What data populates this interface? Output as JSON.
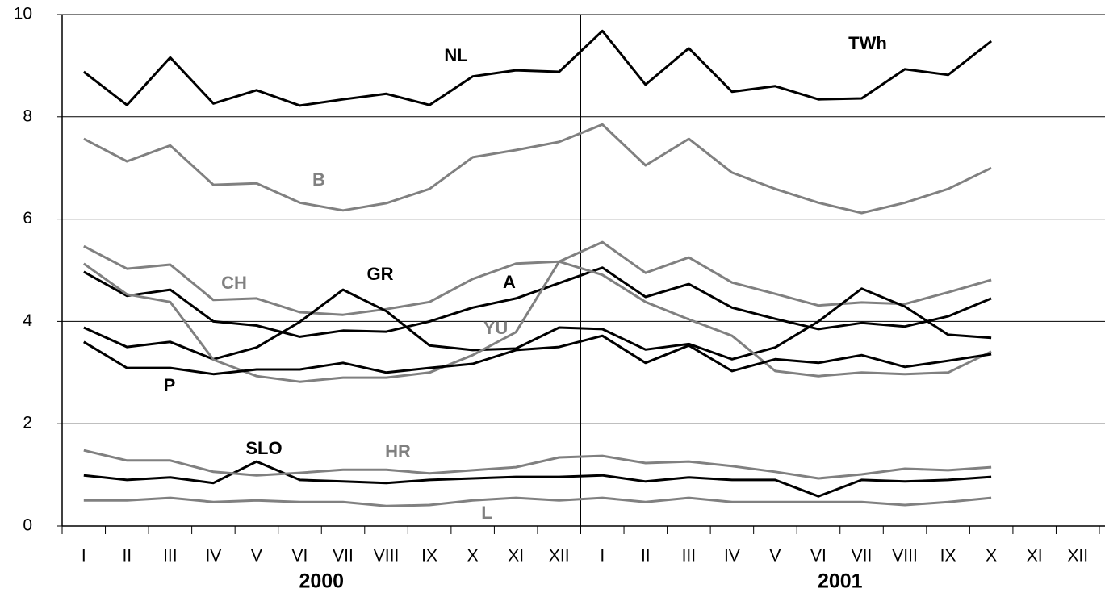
{
  "chart_data": {
    "type": "line",
    "categories": [
      "I",
      "II",
      "III",
      "IV",
      "V",
      "VI",
      "VII",
      "VIII",
      "IX",
      "X",
      "XI",
      "XII",
      "I",
      "II",
      "III",
      "IV",
      "V",
      "VI",
      "VII",
      "VIII",
      "IX",
      "X",
      "XI",
      "XII"
    ],
    "x_group_labels": [
      "2000",
      "2001"
    ],
    "unit_label": "TWh",
    "ylim": [
      0,
      10
    ],
    "yticks": [
      0,
      2,
      4,
      6,
      8,
      10
    ],
    "grid": true,
    "series": [
      {
        "name": "NL",
        "color": "#000000",
        "values": [
          8.88,
          8.23,
          9.16,
          8.26,
          8.52,
          8.22,
          8.34,
          8.45,
          8.23,
          8.79,
          8.91,
          8.88,
          9.68,
          8.63,
          9.34,
          8.49,
          8.6,
          8.34,
          8.36,
          8.93,
          8.82,
          9.48,
          null,
          null
        ]
      },
      {
        "name": "B",
        "color": "#808080",
        "values": [
          7.57,
          7.13,
          7.44,
          6.67,
          6.7,
          6.32,
          6.17,
          6.31,
          6.59,
          7.21,
          7.35,
          7.51,
          7.85,
          7.05,
          7.57,
          6.91,
          6.59,
          6.32,
          6.12,
          6.32,
          6.59,
          7.0,
          null,
          null
        ]
      },
      {
        "name": "CH",
        "color": "#808080",
        "values": [
          5.47,
          5.03,
          5.11,
          4.42,
          4.45,
          4.18,
          4.13,
          4.24,
          4.38,
          4.83,
          5.13,
          5.17,
          5.55,
          4.95,
          5.25,
          4.76,
          4.54,
          4.31,
          4.37,
          4.34,
          4.57,
          4.81,
          null,
          null
        ]
      },
      {
        "name": "GR",
        "color": "#000000",
        "values": [
          3.88,
          3.5,
          3.6,
          3.26,
          3.49,
          3.99,
          4.62,
          4.2,
          3.53,
          3.44,
          3.47,
          3.88,
          3.85,
          3.45,
          3.56,
          3.26,
          3.49,
          4.0,
          4.64,
          4.29,
          3.74,
          3.68,
          null,
          null
        ]
      },
      {
        "name": "A",
        "color": "#000000",
        "values": [
          4.97,
          4.5,
          4.62,
          4.0,
          3.92,
          3.7,
          3.82,
          3.8,
          4.0,
          4.27,
          4.45,
          4.75,
          5.05,
          4.48,
          4.73,
          4.27,
          4.05,
          3.85,
          3.97,
          3.9,
          4.1,
          4.45,
          null,
          null
        ]
      },
      {
        "name": "YU",
        "color": "#808080",
        "values": [
          5.13,
          4.53,
          4.38,
          3.25,
          2.93,
          2.82,
          2.9,
          2.9,
          3.0,
          3.34,
          3.79,
          5.17,
          4.91,
          4.38,
          4.04,
          3.72,
          3.03,
          2.93,
          3.0,
          2.97,
          3.0,
          3.41,
          null,
          null
        ]
      },
      {
        "name": "P",
        "color": "#000000",
        "values": [
          3.6,
          3.09,
          3.09,
          2.97,
          3.06,
          3.06,
          3.19,
          3.0,
          3.09,
          3.17,
          3.44,
          3.5,
          3.72,
          3.19,
          3.53,
          3.03,
          3.26,
          3.19,
          3.34,
          3.11,
          3.23,
          3.36,
          null,
          null
        ]
      },
      {
        "name": "SLO",
        "color": "#000000",
        "values": [
          0.99,
          0.9,
          0.95,
          0.84,
          1.26,
          0.9,
          0.87,
          0.84,
          0.9,
          0.93,
          0.96,
          0.96,
          0.99,
          0.87,
          0.95,
          0.9,
          0.9,
          0.58,
          0.9,
          0.87,
          0.9,
          0.96,
          null,
          null
        ]
      },
      {
        "name": "HR",
        "color": "#808080",
        "values": [
          1.48,
          1.28,
          1.28,
          1.06,
          0.99,
          1.04,
          1.1,
          1.1,
          1.03,
          1.09,
          1.15,
          1.34,
          1.37,
          1.23,
          1.26,
          1.17,
          1.06,
          0.93,
          1.01,
          1.12,
          1.09,
          1.15,
          null,
          null
        ]
      },
      {
        "name": "L",
        "color": "#808080",
        "values": [
          0.5,
          0.5,
          0.55,
          0.47,
          0.5,
          0.47,
          0.47,
          0.39,
          0.41,
          0.5,
          0.55,
          0.5,
          0.55,
          0.47,
          0.55,
          0.47,
          0.47,
          0.47,
          0.47,
          0.41,
          0.47,
          0.55,
          null,
          null
        ]
      }
    ]
  }
}
